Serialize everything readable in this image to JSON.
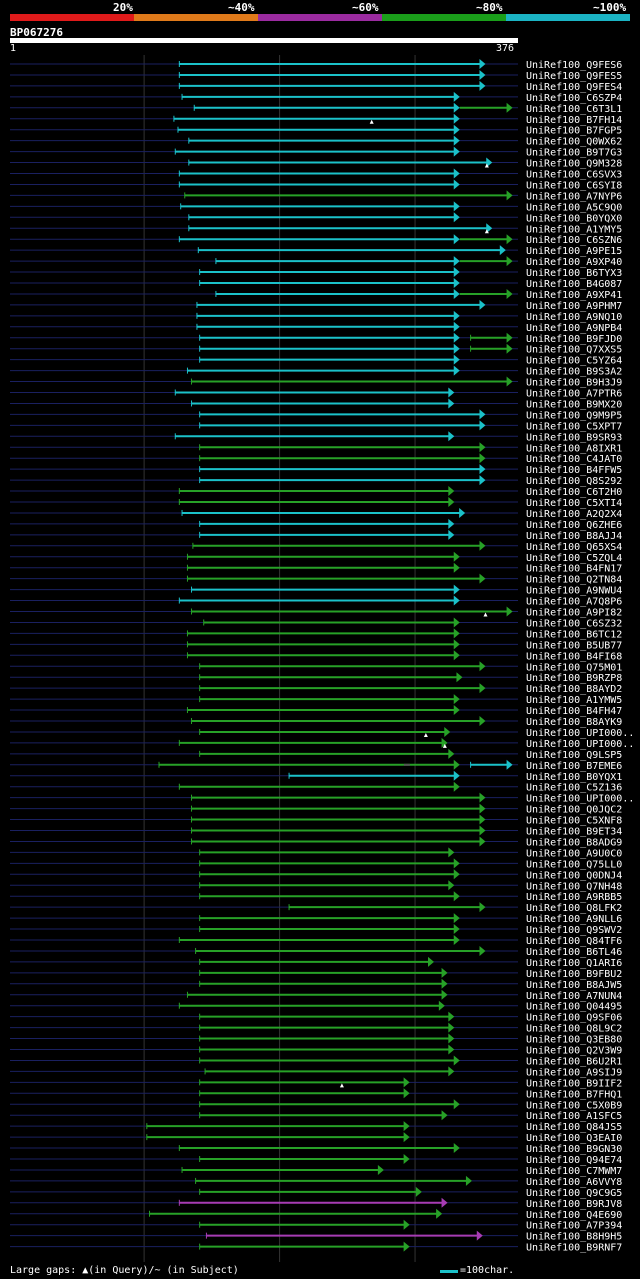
{
  "legend": {
    "labels": [
      "20%",
      "~40%",
      "~60%",
      "~80%",
      "~100%"
    ],
    "colors": [
      "#e01a1a",
      "#e07a1a",
      "#9b2ba0",
      "#1a9e1a",
      "#1bb3c4"
    ]
  },
  "query": {
    "id": "BP067276",
    "start": "1",
    "end": "376"
  },
  "footer": {
    "gaps_note": "Large gaps: ▲(in Query)/~ (in Subject)",
    "scale_label": "=100char."
  },
  "chart_data": {
    "type": "alignment",
    "title": "BP067276",
    "x_range": [
      1,
      376
    ],
    "identity_colors": {
      "cyan": "#1bc1c9",
      "green": "#27a127",
      "purple": "#a73cb4"
    },
    "hits": [
      {
        "label": "UniRef100_Q9FES6",
        "start": 126,
        "end": 352,
        "color": "cyan"
      },
      {
        "label": "UniRef100_Q9FES5",
        "start": 126,
        "end": 352,
        "color": "cyan"
      },
      {
        "label": "UniRef100_Q9FES4",
        "start": 126,
        "end": 352,
        "color": "cyan"
      },
      {
        "label": "UniRef100_C6SZP4",
        "start": 128,
        "end": 333,
        "color": "cyan"
      },
      {
        "label": "UniRef100_C6T3L1",
        "start": 137,
        "end": 333,
        "color": "cyan",
        "ext_end": 372
      },
      {
        "label": "UniRef100_B7FH14",
        "start": 122,
        "end": 333,
        "color": "cyan",
        "gap": [
          268
        ]
      },
      {
        "label": "UniRef100_B7FGP5",
        "start": 125,
        "end": 333,
        "color": "cyan"
      },
      {
        "label": "UniRef100_Q0WX62",
        "start": 133,
        "end": 333,
        "color": "cyan"
      },
      {
        "label": "UniRef100_B9T7G3",
        "start": 123,
        "end": 333,
        "color": "cyan"
      },
      {
        "label": "UniRef100_Q9M328",
        "start": 133,
        "end": 357,
        "color": "cyan",
        "gap": [
          353
        ]
      },
      {
        "label": "UniRef100_C6SVX3",
        "start": 126,
        "end": 333,
        "color": "cyan"
      },
      {
        "label": "UniRef100_C6SYI8",
        "start": 126,
        "end": 333,
        "color": "cyan"
      },
      {
        "label": "UniRef100_A7NYP6",
        "start": 130,
        "end": 372,
        "color": "green"
      },
      {
        "label": "UniRef100_A5C9Q0",
        "start": 127,
        "end": 333,
        "color": "cyan"
      },
      {
        "label": "UniRef100_B0YQX0",
        "start": 133,
        "end": 333,
        "color": "cyan"
      },
      {
        "label": "UniRef100_A1YMY5",
        "start": 133,
        "end": 357,
        "color": "cyan",
        "gap": [
          353
        ]
      },
      {
        "label": "UniRef100_C6SZN6",
        "start": 126,
        "end": 333,
        "color": "cyan",
        "ext_end": 372
      },
      {
        "label": "UniRef100_A9PE15",
        "start": 140,
        "end": 367,
        "color": "cyan"
      },
      {
        "label": "UniRef100_A9XP40",
        "start": 153,
        "end": 333,
        "color": "cyan",
        "ext_end": 372
      },
      {
        "label": "UniRef100_B6TYX3",
        "start": 141,
        "end": 333,
        "color": "cyan"
      },
      {
        "label": "UniRef100_B4G087",
        "start": 141,
        "end": 333,
        "color": "cyan"
      },
      {
        "label": "UniRef100_A9XP41",
        "start": 153,
        "end": 333,
        "color": "cyan",
        "ext_end": 372
      },
      {
        "label": "UniRef100_A9PHM7",
        "start": 139,
        "end": 352,
        "color": "cyan"
      },
      {
        "label": "UniRef100_A9NQ10",
        "start": 139,
        "end": 333,
        "color": "cyan"
      },
      {
        "label": "UniRef100_A9NPB4",
        "start": 139,
        "end": 333,
        "color": "cyan"
      },
      {
        "label": "UniRef100_B9FJD0",
        "start": 141,
        "end": 333,
        "color": "cyan",
        "ext_start": 341,
        "ext_end": 372
      },
      {
        "label": "UniRef100_Q7XXS5",
        "start": 141,
        "end": 333,
        "color": "cyan",
        "ext_start": 341,
        "ext_end": 372
      },
      {
        "label": "UniRef100_C5YZ64",
        "start": 141,
        "end": 333,
        "color": "cyan"
      },
      {
        "label": "UniRef100_B9S3A2",
        "start": 132,
        "end": 333,
        "color": "cyan"
      },
      {
        "label": "UniRef100_B9H3J9",
        "start": 135,
        "end": 372,
        "color": "green"
      },
      {
        "label": "UniRef100_A7PTR6",
        "start": 123,
        "end": 329,
        "color": "cyan"
      },
      {
        "label": "UniRef100_B9MX20",
        "start": 135,
        "end": 329,
        "color": "cyan"
      },
      {
        "label": "UniRef100_Q9M9P5",
        "start": 141,
        "end": 352,
        "color": "cyan"
      },
      {
        "label": "UniRef100_C5XPT7",
        "start": 141,
        "end": 352,
        "color": "cyan"
      },
      {
        "label": "UniRef100_B9SR93",
        "start": 123,
        "end": 329,
        "color": "cyan"
      },
      {
        "label": "UniRef100_A8IXR1",
        "start": 141,
        "end": 352,
        "color": "green"
      },
      {
        "label": "UniRef100_C4JAT0",
        "start": 141,
        "end": 352,
        "color": "green"
      },
      {
        "label": "UniRef100_B4FFW5",
        "start": 141,
        "end": 352,
        "color": "cyan"
      },
      {
        "label": "UniRef100_Q8S292",
        "start": 141,
        "end": 352,
        "color": "cyan"
      },
      {
        "label": "UniRef100_C6T2H0",
        "start": 126,
        "end": 329,
        "color": "green"
      },
      {
        "label": "UniRef100_C5XTI4",
        "start": 126,
        "end": 329,
        "color": "green"
      },
      {
        "label": "UniRef100_A2Q2X4",
        "start": 128,
        "end": 337,
        "color": "cyan"
      },
      {
        "label": "UniRef100_Q6ZHE6",
        "start": 141,
        "end": 329,
        "color": "cyan"
      },
      {
        "label": "UniRef100_B8AJJ4",
        "start": 141,
        "end": 329,
        "color": "cyan"
      },
      {
        "label": "UniRef100_Q65XS4",
        "start": 136,
        "end": 352,
        "color": "green"
      },
      {
        "label": "UniRef100_C5ZQL4",
        "start": 132,
        "end": 333,
        "color": "green"
      },
      {
        "label": "UniRef100_B4FN17",
        "start": 132,
        "end": 333,
        "color": "green"
      },
      {
        "label": "UniRef100_Q2TN84",
        "start": 132,
        "end": 352,
        "color": "green"
      },
      {
        "label": "UniRef100_A9NWU4",
        "start": 135,
        "end": 333,
        "color": "cyan"
      },
      {
        "label": "UniRef100_A7Q8P6",
        "start": 126,
        "end": 333,
        "color": "cyan"
      },
      {
        "label": "UniRef100_A9PI82",
        "start": 135,
        "end": 372,
        "color": "green",
        "gap": [
          352
        ]
      },
      {
        "label": "UniRef100_C6SZ32",
        "start": 144,
        "end": 333,
        "color": "green"
      },
      {
        "label": "UniRef100_B6TC12",
        "start": 132,
        "end": 333,
        "color": "green"
      },
      {
        "label": "UniRef100_B5UB77",
        "start": 132,
        "end": 333,
        "color": "green"
      },
      {
        "label": "UniRef100_B4FI68",
        "start": 132,
        "end": 333,
        "color": "green"
      },
      {
        "label": "UniRef100_Q75M01",
        "start": 141,
        "end": 352,
        "color": "green"
      },
      {
        "label": "UniRef100_B9RZP8",
        "start": 141,
        "end": 335,
        "color": "green"
      },
      {
        "label": "UniRef100_B8AYD2",
        "start": 141,
        "end": 352,
        "color": "green"
      },
      {
        "label": "UniRef100_A1YMW5",
        "start": 141,
        "end": 333,
        "color": "green"
      },
      {
        "label": "UniRef100_B4FH47",
        "start": 132,
        "end": 333,
        "color": "green"
      },
      {
        "label": "UniRef100_B8AYK9",
        "start": 135,
        "end": 352,
        "color": "green"
      },
      {
        "label": "UniRef100_UPI000..",
        "start": 141,
        "end": 326,
        "color": "green",
        "gap": [
          308
        ]
      },
      {
        "label": "UniRef100_UPI000..",
        "start": 126,
        "end": 324,
        "color": "green",
        "gap": [
          322
        ]
      },
      {
        "label": "UniRef100_Q9LSP5",
        "start": 141,
        "end": 329,
        "color": "green"
      },
      {
        "label": "UniRef100_B7EME6",
        "start": 111,
        "end": 333,
        "color": "green",
        "ext_start": 341,
        "ext_end": 372,
        "ext_color": "cyan",
        "tilde": 294
      },
      {
        "label": "UniRef100_B0YQX1",
        "start": 207,
        "end": 333,
        "color": "cyan"
      },
      {
        "label": "UniRef100_C5Z136",
        "start": 126,
        "end": 333,
        "color": "green"
      },
      {
        "label": "UniRef100_UPI000..",
        "start": 135,
        "end": 352,
        "color": "green"
      },
      {
        "label": "UniRef100_Q0JQC2",
        "start": 135,
        "end": 352,
        "color": "green"
      },
      {
        "label": "UniRef100_C5XNF8",
        "start": 135,
        "end": 352,
        "color": "green"
      },
      {
        "label": "UniRef100_B9ET34",
        "start": 135,
        "end": 352,
        "color": "green"
      },
      {
        "label": "UniRef100_B8ADG9",
        "start": 135,
        "end": 352,
        "color": "green"
      },
      {
        "label": "UniRef100_A9U0C0",
        "start": 141,
        "end": 329,
        "color": "green"
      },
      {
        "label": "UniRef100_Q75LL0",
        "start": 141,
        "end": 333,
        "color": "green"
      },
      {
        "label": "UniRef100_Q0DNJ4",
        "start": 141,
        "end": 333,
        "color": "green"
      },
      {
        "label": "UniRef100_Q7NH48",
        "start": 141,
        "end": 329,
        "color": "green"
      },
      {
        "label": "UniRef100_A9RBB5",
        "start": 141,
        "end": 333,
        "color": "green"
      },
      {
        "label": "UniRef100_Q8LFK2",
        "start": 207,
        "end": 352,
        "color": "green"
      },
      {
        "label": "UniRef100_A9NLL6",
        "start": 141,
        "end": 333,
        "color": "green"
      },
      {
        "label": "UniRef100_Q9SWV2",
        "start": 141,
        "end": 333,
        "color": "green"
      },
      {
        "label": "UniRef100_Q84TF6",
        "start": 126,
        "end": 333,
        "color": "green"
      },
      {
        "label": "UniRef100_B6TL46",
        "start": 138,
        "end": 352,
        "color": "green"
      },
      {
        "label": "UniRef100_Q1ARI6",
        "start": 141,
        "end": 314,
        "color": "green"
      },
      {
        "label": "UniRef100_B9FBU2",
        "start": 141,
        "end": 324,
        "color": "green"
      },
      {
        "label": "UniRef100_B8AJW5",
        "start": 141,
        "end": 324,
        "color": "green"
      },
      {
        "label": "UniRef100_A7NUN4",
        "start": 132,
        "end": 324,
        "color": "green"
      },
      {
        "label": "UniRef100_Q04495",
        "start": 126,
        "end": 322,
        "color": "green"
      },
      {
        "label": "UniRef100_Q9SF06",
        "start": 141,
        "end": 329,
        "color": "green"
      },
      {
        "label": "UniRef100_Q8L9C2",
        "start": 141,
        "end": 329,
        "color": "green"
      },
      {
        "label": "UniRef100_Q3EB80",
        "start": 141,
        "end": 329,
        "color": "green"
      },
      {
        "label": "UniRef100_Q2V3W9",
        "start": 141,
        "end": 329,
        "color": "green"
      },
      {
        "label": "UniRef100_B6U2R1",
        "start": 141,
        "end": 333,
        "color": "green"
      },
      {
        "label": "UniRef100_A9SIJ9",
        "start": 145,
        "end": 329,
        "color": "green"
      },
      {
        "label": "UniRef100_B9IIF2",
        "start": 141,
        "end": 296,
        "color": "green",
        "gap": [
          246
        ]
      },
      {
        "label": "UniRef100_B7FHQ1",
        "start": 141,
        "end": 296,
        "color": "green"
      },
      {
        "label": "UniRef100_C5X0B9",
        "start": 141,
        "end": 333,
        "color": "green"
      },
      {
        "label": "UniRef100_A1SFC5",
        "start": 141,
        "end": 324,
        "color": "green"
      },
      {
        "label": "UniRef100_Q84JS5",
        "start": 102,
        "end": 296,
        "color": "green"
      },
      {
        "label": "UniRef100_Q3EAI0",
        "start": 102,
        "end": 296,
        "color": "green"
      },
      {
        "label": "UniRef100_B9GN30",
        "start": 126,
        "end": 333,
        "color": "green"
      },
      {
        "label": "UniRef100_Q94E74",
        "start": 141,
        "end": 296,
        "color": "green"
      },
      {
        "label": "UniRef100_C7MWM7",
        "start": 128,
        "end": 277,
        "color": "green"
      },
      {
        "label": "UniRef100_A6VVY8",
        "start": 138,
        "end": 342,
        "color": "green"
      },
      {
        "label": "UniRef100_Q9C9G5",
        "start": 141,
        "end": 305,
        "color": "green"
      },
      {
        "label": "UniRef100_B9RJV8",
        "start": 126,
        "end": 324,
        "color": "purple"
      },
      {
        "label": "UniRef100_Q4E690",
        "start": 104,
        "end": 320,
        "color": "green"
      },
      {
        "label": "UniRef100_A7P394",
        "start": 141,
        "end": 296,
        "color": "green"
      },
      {
        "label": "UniRef100_B8H9H5",
        "start": 146,
        "end": 350,
        "color": "purple"
      },
      {
        "label": "UniRef100_B9RNF7",
        "start": 141,
        "end": 296,
        "color": "green"
      }
    ]
  }
}
